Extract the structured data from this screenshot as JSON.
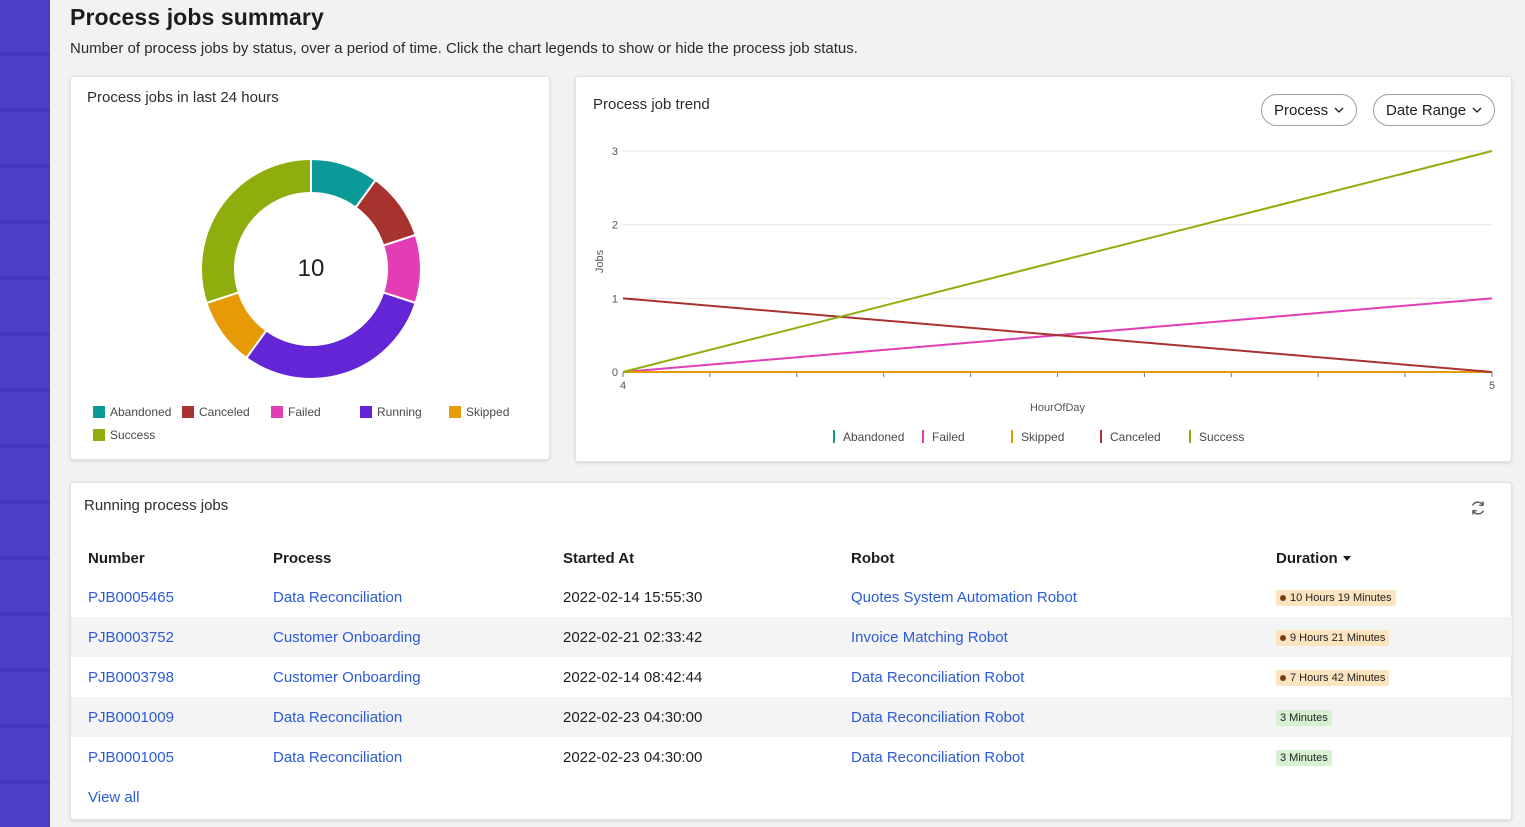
{
  "header": {
    "title": "Process jobs summary",
    "description": "Number of process jobs by status, over a period of time. Click the chart legends to show or hide the process job status."
  },
  "donut_card": {
    "title": "Process jobs in last 24 hours",
    "total": "10",
    "legend": [
      {
        "label": "Abandoned",
        "color": "#0b9a98"
      },
      {
        "label": "Canceled",
        "color": "#a8322e"
      },
      {
        "label": "Failed",
        "color": "#e33db4"
      },
      {
        "label": "Running",
        "color": "#6325d6"
      },
      {
        "label": "Skipped",
        "color": "#e59a06"
      },
      {
        "label": "Success",
        "color": "#8fae0e"
      }
    ]
  },
  "trend_card": {
    "title": "Process job trend",
    "process_filter": "Process",
    "date_filter": "Date Range"
  },
  "chart_data": [
    {
      "type": "pie",
      "title": "Process jobs in last 24 hours",
      "center_label": "10",
      "categories": [
        "Abandoned",
        "Canceled",
        "Failed",
        "Running",
        "Skipped",
        "Success"
      ],
      "values": [
        1,
        1,
        1,
        3,
        1,
        3
      ],
      "colors": [
        "#0b9a98",
        "#a8322e",
        "#e33db4",
        "#6325d6",
        "#e59a06",
        "#8fae0e"
      ],
      "legend": "bottom"
    },
    {
      "type": "line",
      "title": "Process job trend",
      "xlabel": "HourOfDay",
      "ylabel": "Jobs",
      "x": [
        4,
        5
      ],
      "xlim": [
        4,
        5
      ],
      "ylim": [
        0,
        3
      ],
      "yticks": [
        0,
        1,
        2,
        3
      ],
      "grid": true,
      "legend": "bottom",
      "series": [
        {
          "name": "Abandoned",
          "values": [
            0,
            0
          ],
          "color": "#0b9a98"
        },
        {
          "name": "Failed",
          "values": [
            0,
            1
          ],
          "color": "#e33db4"
        },
        {
          "name": "Skipped",
          "values": [
            0,
            0
          ],
          "color": "#e59a06"
        },
        {
          "name": "Canceled",
          "values": [
            1,
            0
          ],
          "color": "#a8322e"
        },
        {
          "name": "Success",
          "values": [
            0,
            3
          ],
          "color": "#8fae0e"
        }
      ]
    }
  ],
  "running_card": {
    "title": "Running process jobs",
    "columns": {
      "number": "Number",
      "process": "Process",
      "started": "Started At",
      "robot": "Robot",
      "duration": "Duration"
    },
    "rows": [
      {
        "number": "PJB0005465",
        "process": "Data Reconciliation",
        "started": "2022-02-14 15:55:30",
        "robot": "Quotes System Automation Robot",
        "duration": "10 Hours 19 Minutes",
        "level": "warn"
      },
      {
        "number": "PJB0003752",
        "process": "Customer Onboarding",
        "started": "2022-02-21 02:33:42",
        "robot": "Invoice Matching Robot",
        "duration": "9 Hours 21 Minutes",
        "level": "warn"
      },
      {
        "number": "PJB0003798",
        "process": "Customer Onboarding",
        "started": "2022-02-14 08:42:44",
        "robot": "Data Reconciliation Robot",
        "duration": "7 Hours 42 Minutes",
        "level": "warn"
      },
      {
        "number": "PJB0001009",
        "process": "Data Reconciliation",
        "started": "2022-02-23 04:30:00",
        "robot": "Data Reconciliation Robot",
        "duration": "3 Minutes",
        "level": "ok"
      },
      {
        "number": "PJB0001005",
        "process": "Data Reconciliation",
        "started": "2022-02-23 04:30:00",
        "robot": "Data Reconciliation Robot",
        "duration": "3 Minutes",
        "level": "ok"
      }
    ],
    "view_all": "View all"
  }
}
